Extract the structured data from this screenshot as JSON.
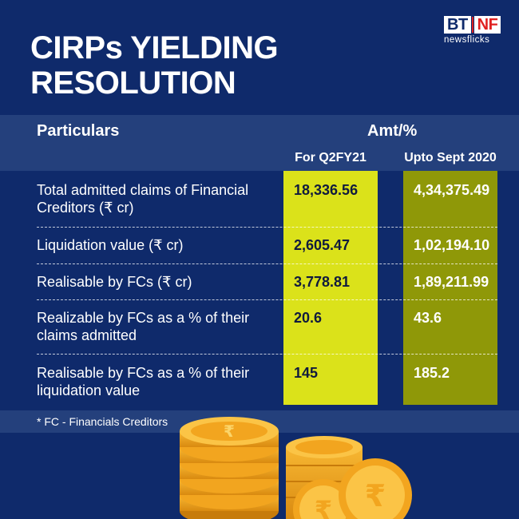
{
  "title": {
    "line1": "CIRPs YIELDING",
    "line2": "RESOLUTION"
  },
  "logo": {
    "bt": "BT",
    "nf": "NF",
    "sub": "newsflicks"
  },
  "table": {
    "header_particulars": "Particulars",
    "header_amt": "Amt/%",
    "col1": "For Q2FY21",
    "col2": "Upto Sept 2020",
    "rows": [
      {
        "label": "Total admitted claims of Financial Creditors (₹ cr)",
        "q2fy21": "18,336.56",
        "upto_sept_2020": "4,34,375.49"
      },
      {
        "label": "Liquidation value (₹ cr)",
        "q2fy21": "2,605.47",
        "upto_sept_2020": "1,02,194.10"
      },
      {
        "label": "Realisable by FCs (₹ cr)",
        "q2fy21": "3,778.81",
        "upto_sept_2020": "1,89,211.99"
      },
      {
        "label": "Realizable by FCs as a % of their claims admitted",
        "q2fy21": "20.6",
        "upto_sept_2020": "43.6"
      },
      {
        "label": "Realisable by FCs as a % of their liquidation value",
        "q2fy21": "145",
        "upto_sept_2020": "185.2"
      }
    ]
  },
  "footnote": "* FC - Financials Creditors",
  "colors": {
    "background": "#0f2a6b",
    "band": "#24407c",
    "col1": "#dbe21a",
    "col2": "#8f9808",
    "coin": "#f5a623"
  },
  "decor": {
    "coins_icon": "rupee-coins-icon"
  }
}
